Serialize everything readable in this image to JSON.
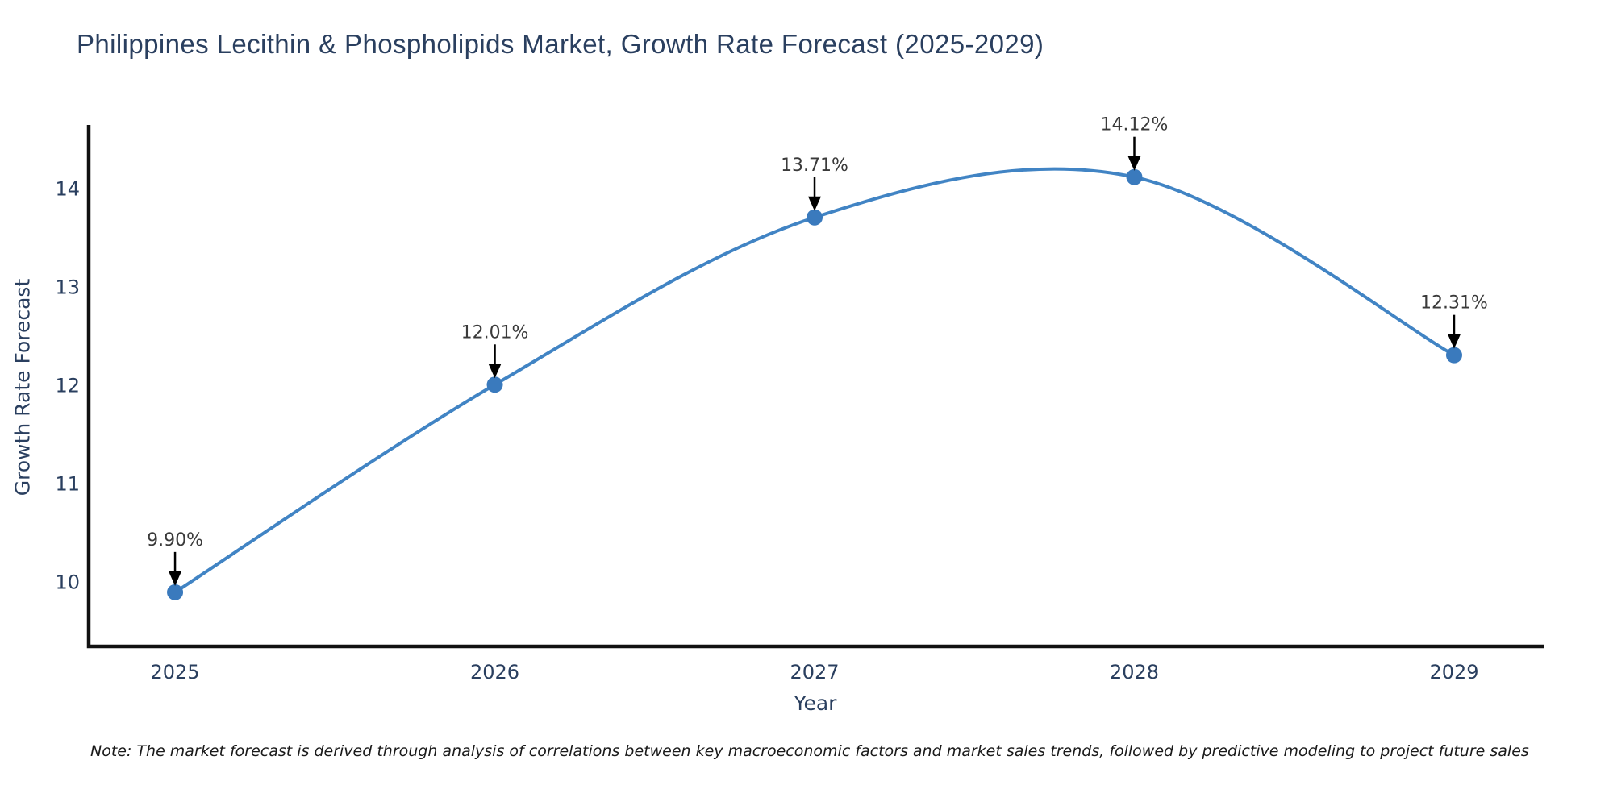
{
  "title": "Philippines Lecithin & Phospholipids Market, Growth Rate Forecast (2025-2029)",
  "note": "Note: The market forecast is derived through analysis of correlations between key macroeconomic factors and market sales trends, followed by predictive modeling to project future sales",
  "chart_data": {
    "type": "line",
    "line_shape": "spline",
    "x": [
      2025,
      2026,
      2027,
      2028,
      2029
    ],
    "values": [
      9.9,
      12.01,
      13.71,
      14.12,
      12.31
    ],
    "point_labels": [
      "9.90%",
      "12.01%",
      "13.71%",
      "14.12%",
      "12.31%"
    ],
    "x_tick_labels": [
      "2025",
      "2026",
      "2027",
      "2028",
      "2029"
    ],
    "y_ticks": [
      10,
      11,
      12,
      13,
      14
    ],
    "xlabel": "Year",
    "ylabel": "Growth Rate Forecast",
    "xlim": [
      2024.73,
      2029.28
    ],
    "ylim": [
      9.35,
      14.65
    ],
    "grid": false,
    "legend": "none",
    "colors": {
      "line": "#4184c4",
      "marker": "#3a7abd",
      "axis": "#111111",
      "tick_text": "#2a3f5f",
      "axis_title_text": "#2a3f5f",
      "annotation_text": "#3a3a3a",
      "arrow": "#000000",
      "title_text": "#2a3f5f",
      "background": "#ffffff"
    }
  }
}
